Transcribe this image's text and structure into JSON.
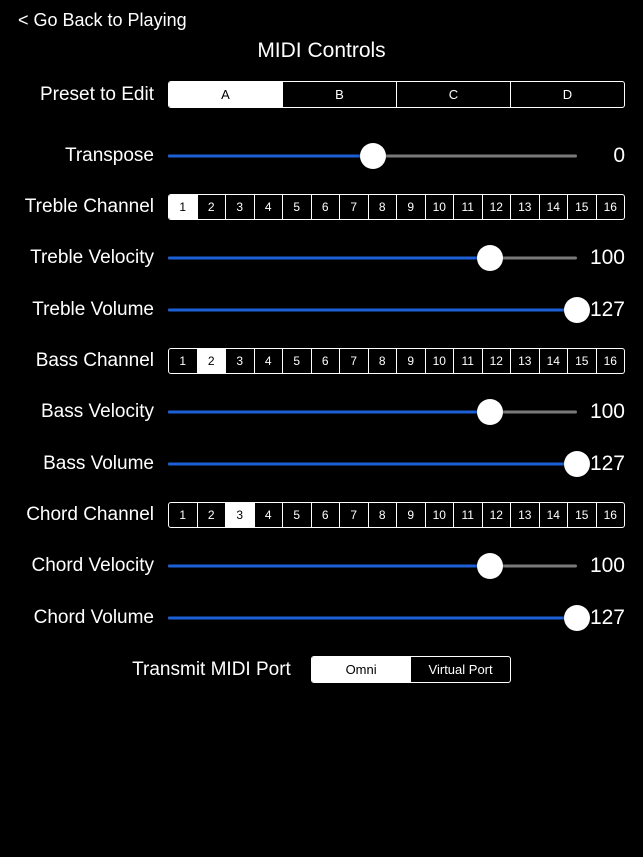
{
  "back_link": "< Go Back to Playing",
  "title": "MIDI Controls",
  "preset": {
    "label": "Preset to Edit",
    "options": [
      "A",
      "B",
      "C",
      "D"
    ],
    "selected": "A"
  },
  "channels": [
    1,
    2,
    3,
    4,
    5,
    6,
    7,
    8,
    9,
    10,
    11,
    12,
    13,
    14,
    15,
    16
  ],
  "sliders": {
    "transpose": {
      "label": "Transpose",
      "value": 0,
      "min": -12,
      "max": 12,
      "pct": 50.0
    },
    "treble_velocity": {
      "label": "Treble Velocity",
      "value": 100,
      "min": 0,
      "max": 127,
      "pct": 78.7
    },
    "treble_volume": {
      "label": "Treble Volume",
      "value": 127,
      "min": 0,
      "max": 127,
      "pct": 100.0
    },
    "bass_velocity": {
      "label": "Bass Velocity",
      "value": 100,
      "min": 0,
      "max": 127,
      "pct": 78.7
    },
    "bass_volume": {
      "label": "Bass Volume",
      "value": 127,
      "min": 0,
      "max": 127,
      "pct": 100.0
    },
    "chord_velocity": {
      "label": "Chord Velocity",
      "value": 100,
      "min": 0,
      "max": 127,
      "pct": 78.7
    },
    "chord_volume": {
      "label": "Chord Volume",
      "value": 127,
      "min": 0,
      "max": 127,
      "pct": 100.0
    }
  },
  "channel_selects": {
    "treble": {
      "label": "Treble Channel",
      "selected": 1
    },
    "bass": {
      "label": "Bass Channel",
      "selected": 2
    },
    "chord": {
      "label": "Chord Channel",
      "selected": 3
    }
  },
  "transmit": {
    "label": "Transmit MIDI Port",
    "options": [
      "Omni",
      "Virtual Port"
    ],
    "selected": "Omni"
  },
  "colors": {
    "accent": "#1d5fd6",
    "track_bg": "#7a7a7a",
    "fg": "#ffffff",
    "bg": "#000000"
  }
}
